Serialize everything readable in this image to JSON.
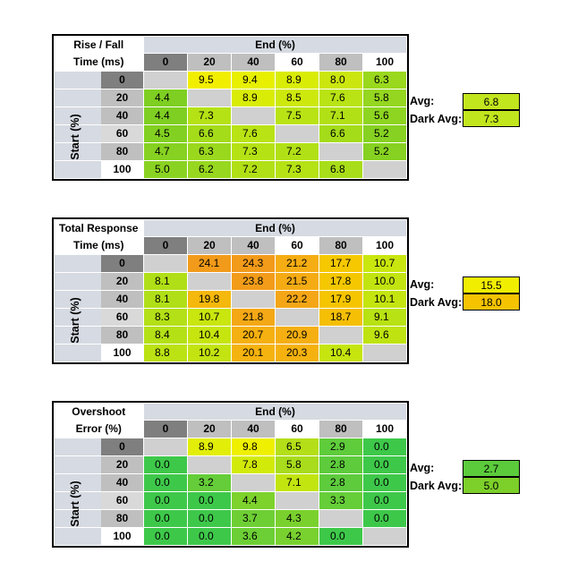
{
  "labels": {
    "end": "End (%)",
    "start": "Start (%)",
    "avg": "Avg:",
    "dark_avg": "Dark Avg:"
  },
  "columns": [
    "0",
    "20",
    "40",
    "60",
    "80",
    "100"
  ],
  "rows": [
    "0",
    "20",
    "40",
    "60",
    "80",
    "100"
  ],
  "tables": [
    {
      "title1": "Rise / Fall",
      "title2": "Time (ms)",
      "avg": "6.8",
      "dark_avg": "7.3",
      "avg_color": "#c2e61e",
      "dark_avg_color": "#c2e61e",
      "cells": [
        [
          null,
          "9.5",
          "9.4",
          "8.9",
          "8.0",
          "6.3"
        ],
        [
          "4.4",
          null,
          "8.9",
          "8.5",
          "7.6",
          "5.8"
        ],
        [
          "4.4",
          "7.3",
          null,
          "7.5",
          "7.1",
          "5.6"
        ],
        [
          "4.5",
          "6.6",
          "7.6",
          null,
          "6.6",
          "5.2"
        ],
        [
          "4.7",
          "6.3",
          "7.3",
          "7.2",
          null,
          "5.2"
        ],
        [
          "5.0",
          "6.2",
          "7.2",
          "7.3",
          "6.8",
          null
        ]
      ],
      "colors": [
        [
          null,
          "#f2ee00",
          "#e8f000",
          "#d9ec06",
          "#cbe60f",
          "#9ad81e"
        ],
        [
          "#7ecf22",
          null,
          "#d9ec06",
          "#cde80d",
          "#b9e314",
          "#94d620"
        ],
        [
          "#7ecf22",
          "#b5e215",
          null,
          "#b9e314",
          "#b2e016",
          "#8ed521"
        ],
        [
          "#82d021",
          "#a4dc1a",
          "#b9e314",
          null,
          "#a4dc1a",
          "#86d121"
        ],
        [
          "#86d121",
          "#9ad81e",
          "#b5e215",
          "#b2e016",
          null,
          "#86d121"
        ],
        [
          "#8ad222",
          "#97d71f",
          "#b2e016",
          "#b5e215",
          "#a8dd19",
          null
        ]
      ]
    },
    {
      "title1": "Total Response",
      "title2": "Time (ms)",
      "avg": "15.5",
      "dark_avg": "18.0",
      "avg_color": "#f2ee00",
      "dark_avg_color": "#f5c300",
      "cells": [
        [
          null,
          "24.1",
          "24.3",
          "21.2",
          "17.7",
          "10.7"
        ],
        [
          "8.1",
          null,
          "23.8",
          "21.5",
          "17.8",
          "10.0"
        ],
        [
          "8.1",
          "19.8",
          null,
          "22.2",
          "17.9",
          "10.1"
        ],
        [
          "8.3",
          "10.7",
          "21.8",
          null,
          "18.7",
          "9.1"
        ],
        [
          "8.4",
          "10.4",
          "20.7",
          "20.9",
          null,
          "9.6"
        ],
        [
          "8.8",
          "10.2",
          "20.1",
          "20.3",
          "10.4",
          null
        ]
      ],
      "colors": [
        [
          null,
          "#f29a1a",
          "#f29a1a",
          "#f5ad13",
          "#f5c800",
          "#c9e60e"
        ],
        [
          "#b0df17",
          null,
          "#f29c1a",
          "#f5ab14",
          "#f5c700",
          "#c2e410"
        ],
        [
          "#b0df17",
          "#f5b80c",
          null,
          "#f4a616",
          "#f5c500",
          "#c4e510"
        ],
        [
          "#b3e016",
          "#c9e60e",
          "#f4a815",
          null,
          "#f5bf06",
          "#b8e213"
        ],
        [
          "#b4e016",
          "#c6e50f",
          "#f5b011",
          "#f5af12",
          null,
          "#bee311"
        ],
        [
          "#bbe213",
          "#c3e410",
          "#f5b30f",
          "#f5b20f",
          "#c6e50f",
          null
        ]
      ]
    },
    {
      "title1": "Overshoot",
      "title2": "Error (%)",
      "avg": "2.7",
      "dark_avg": "5.0",
      "avg_color": "#5bcb3c",
      "dark_avg_color": "#7dd02a",
      "cells": [
        [
          null,
          "8.9",
          "9.8",
          "6.5",
          "2.9",
          "0.0"
        ],
        [
          "0.0",
          null,
          "7.8",
          "5.8",
          "2.8",
          "0.0"
        ],
        [
          "0.0",
          "3.2",
          null,
          "7.1",
          "2.8",
          "0.0"
        ],
        [
          "0.0",
          "0.0",
          "4.4",
          null,
          "3.3",
          "0.0"
        ],
        [
          "0.0",
          "0.0",
          "3.7",
          "4.3",
          null,
          "0.0"
        ],
        [
          "0.0",
          "0.0",
          "3.6",
          "4.2",
          "0.0",
          null
        ]
      ],
      "colors": [
        [
          null,
          "#e2ee08",
          "#eef000",
          "#b4df18",
          "#5fcc3b",
          "#3ec84a"
        ],
        [
          "#3ec84a",
          null,
          "#d2ea0a",
          "#a8dc1c",
          "#5dcb3c",
          "#3ec84a"
        ],
        [
          "#3ec84a",
          "#64cd39",
          null,
          "#c2e510",
          "#5dcb3c",
          "#3ec84a"
        ],
        [
          "#3ec84a",
          "#3ec84a",
          "#7dd22c",
          null,
          "#66ce38",
          "#3ec84a"
        ],
        [
          "#3ec84a",
          "#3ec84a",
          "#6ecf34",
          "#7ad12e",
          null,
          "#3ec84a"
        ],
        [
          "#3ec84a",
          "#3ec84a",
          "#6ccf35",
          "#78d12f",
          "#3ec84a",
          null
        ]
      ]
    }
  ]
}
